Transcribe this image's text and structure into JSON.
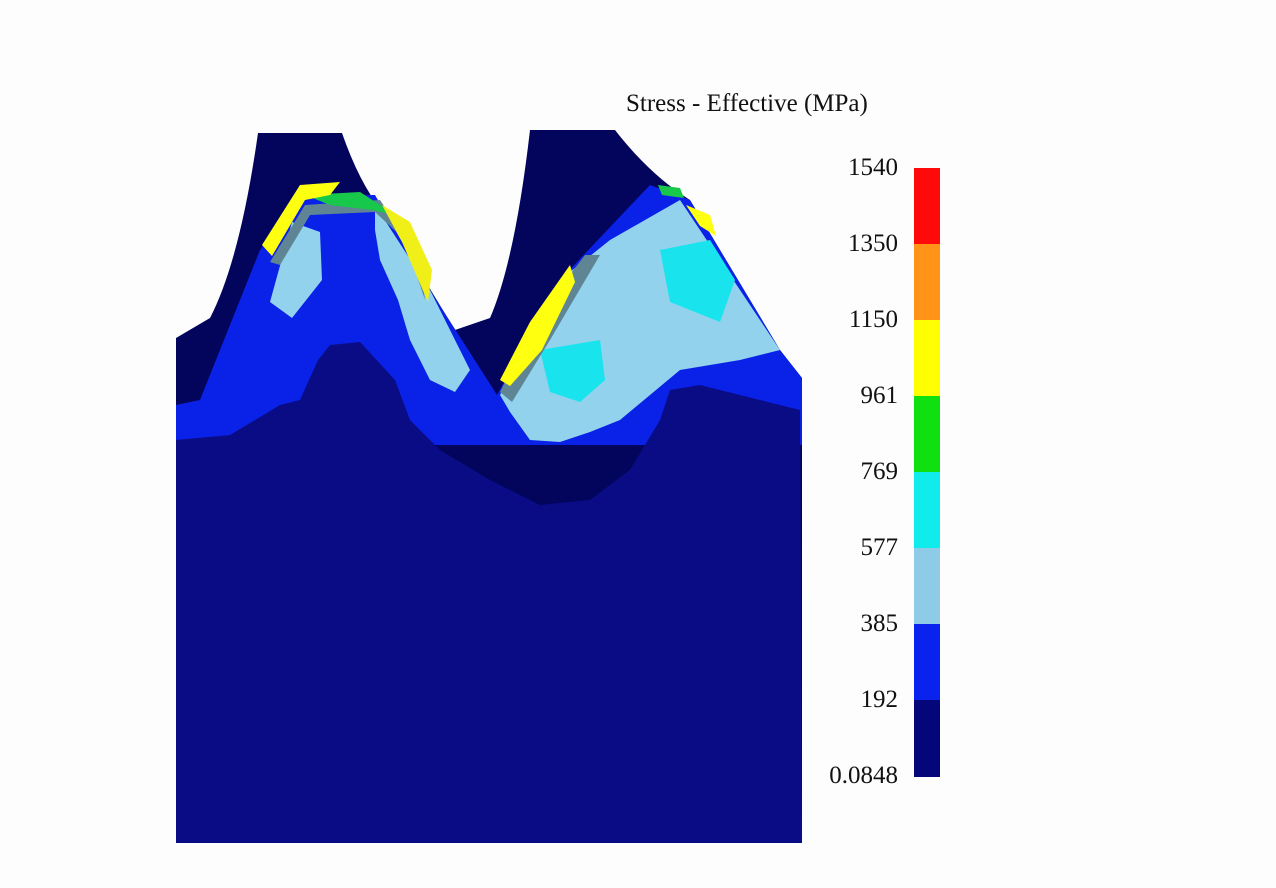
{
  "chart_data": {
    "type": "heatmap",
    "subtype": "finite-element contour plot (gear teeth)",
    "title": "Stress - Effective (MPa)",
    "colorbar": {
      "tick_labels": [
        "1540",
        "1350",
        "1150",
        "961",
        "769",
        "577",
        "385",
        "192",
        "0.0848"
      ],
      "range": [
        0.0848,
        1540
      ],
      "bands": [
        {
          "from": 1350,
          "to": 1540,
          "color": "#ff0a0a"
        },
        {
          "from": 1150,
          "to": 1350,
          "color": "#ff9418"
        },
        {
          "from": 961,
          "to": 1150,
          "color": "#ffff00"
        },
        {
          "from": 769,
          "to": 961,
          "color": "#10e010"
        },
        {
          "from": 577,
          "to": 769,
          "color": "#10ecec"
        },
        {
          "from": 385,
          "to": 577,
          "color": "#8ecbe6"
        },
        {
          "from": 192,
          "to": 385,
          "color": "#0a22ee"
        },
        {
          "from": 0.0848,
          "to": 192,
          "color": "#05067a"
        }
      ],
      "placement": "right"
    }
  }
}
